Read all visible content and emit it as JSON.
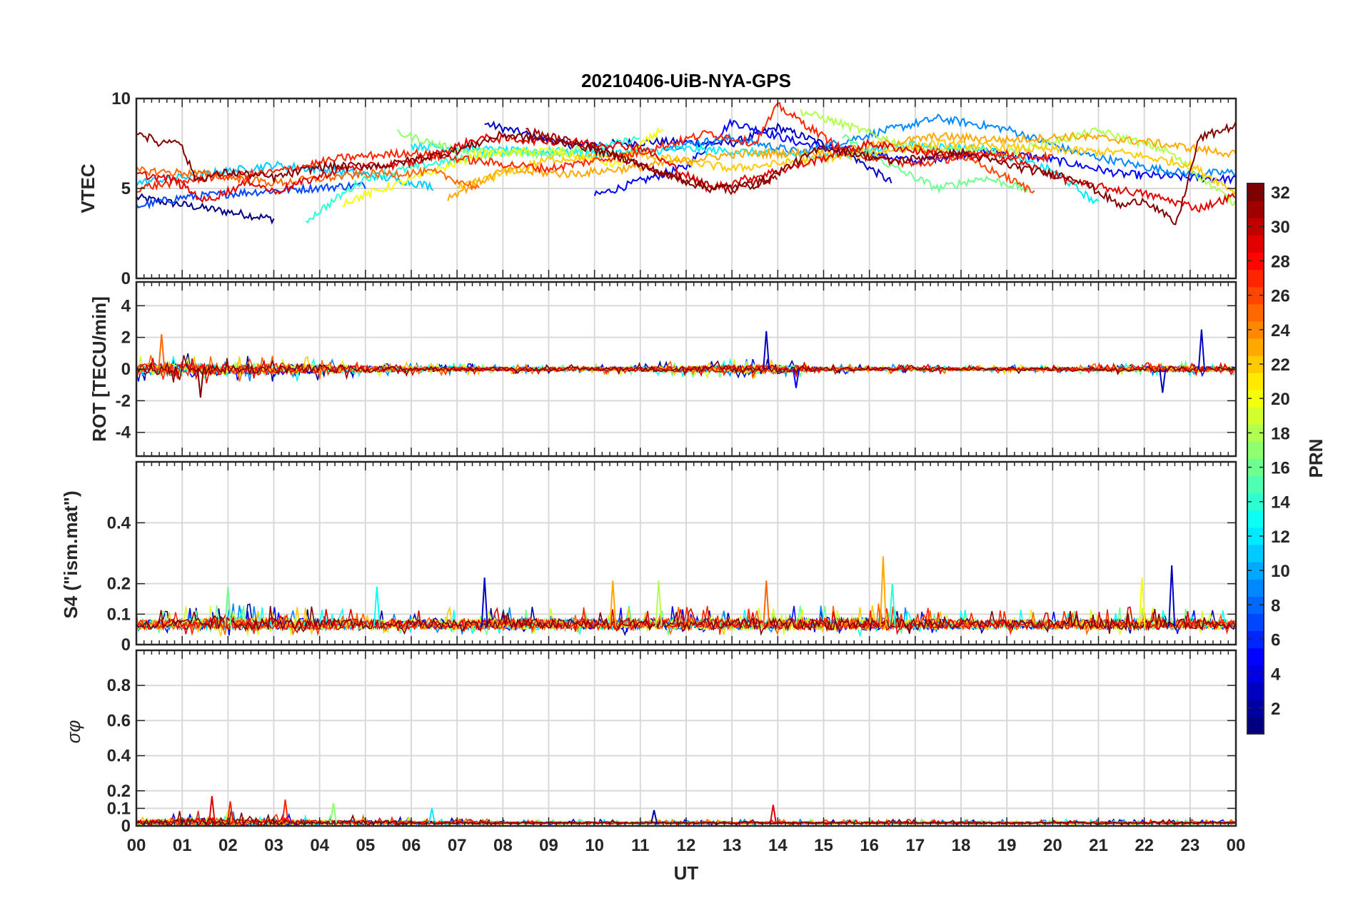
{
  "chart_data": {
    "type": "line",
    "title": "20210406-UiB-NYA-GPS",
    "xlabel": "UT",
    "x_tick_labels": [
      "00",
      "01",
      "02",
      "03",
      "04",
      "05",
      "06",
      "07",
      "08",
      "09",
      "10",
      "11",
      "12",
      "13",
      "14",
      "15",
      "16",
      "17",
      "18",
      "19",
      "20",
      "21",
      "22",
      "23",
      "00"
    ],
    "xlim": [
      0,
      24
    ],
    "grid": true,
    "colorbar": {
      "label": "PRN",
      "range": [
        1,
        32
      ],
      "tick_labels": [
        "2",
        "4",
        "6",
        "8",
        "10",
        "12",
        "14",
        "16",
        "18",
        "20",
        "22",
        "24",
        "26",
        "28",
        "30",
        "32"
      ],
      "colormap": "jet"
    },
    "panels": [
      {
        "name": "vtec",
        "ylabel": "VTEC",
        "ylim": [
          0,
          10
        ],
        "y_ticks": [
          0,
          5,
          10
        ],
        "y_tick_labels": [
          "0",
          "5",
          "10"
        ],
        "series": [
          {
            "prn": 1,
            "x": [
              0.0,
              1.5,
              3.0
            ],
            "y": [
              4.5,
              3.9,
              3.3
            ]
          },
          {
            "prn": 3,
            "x": [
              7.6,
              9.5,
              11.4,
              13.0,
              14.0,
              15.5,
              16.5
            ],
            "y": [
              8.6,
              7.4,
              7.6,
              7.5,
              8.4,
              7.0,
              5.3
            ]
          },
          {
            "prn": 5,
            "x": [
              10.0,
              12.0,
              13.0,
              14.5,
              15.5,
              17.0,
              18.5,
              20.0,
              21.5,
              23.0,
              24.0
            ],
            "y": [
              4.6,
              6.2,
              8.7,
              7.5,
              7.2,
              6.5,
              7.1,
              6.6,
              5.8,
              5.6,
              5.5
            ]
          },
          {
            "prn": 7,
            "x": [
              0.0,
              1.0,
              2.5,
              5.0
            ],
            "y": [
              4.0,
              4.5,
              4.8,
              5.2
            ]
          },
          {
            "prn": 9,
            "x": [
              11.5,
              13.0,
              14.5,
              16.0,
              17.5,
              19.0,
              20.5,
              22.0,
              23.0,
              24.0
            ],
            "y": [
              7.3,
              7.8,
              7.0,
              8.0,
              8.9,
              8.3,
              7.0,
              6.2,
              5.8,
              5.9
            ]
          },
          {
            "prn": 11,
            "x": [
              0.0,
              1.5,
              3.0,
              5.0,
              6.5
            ],
            "y": [
              5.3,
              5.8,
              6.3,
              5.8,
              5.1
            ]
          },
          {
            "prn": 12,
            "x": [
              6.0,
              8.0,
              10.0,
              12.0,
              13.5,
              15.0,
              17.0,
              18.5,
              20.0,
              21.0
            ],
            "y": [
              7.4,
              7.1,
              6.9,
              7.2,
              7.0,
              6.8,
              7.4,
              7.2,
              6.0,
              4.1
            ]
          },
          {
            "prn": 14,
            "x": [
              3.7,
              5.0,
              6.5,
              8.0,
              10.0,
              11.0
            ],
            "y": [
              3.2,
              5.6,
              6.4,
              7.0,
              7.2,
              7.8
            ]
          },
          {
            "prn": 16,
            "x": [
              15.4,
              16.5,
              17.5,
              18.5,
              19.5
            ],
            "y": [
              7.9,
              6.2,
              5.0,
              5.6,
              4.9
            ]
          },
          {
            "prn": 17,
            "x": [
              5.7,
              7.0,
              9.0,
              10.0
            ],
            "y": [
              8.1,
              7.1,
              6.9,
              7.4
            ]
          },
          {
            "prn": 18,
            "x": [
              14.5,
              15.5,
              17.0,
              19.0,
              21.0,
              22.5,
              24.0
            ],
            "y": [
              9.3,
              8.5,
              7.2,
              7.0,
              8.2,
              7.1,
              4.1
            ]
          },
          {
            "prn": 20,
            "x": [
              4.5,
              6.0,
              7.5,
              9.0,
              10.5,
              11.5
            ],
            "y": [
              4.2,
              5.5,
              6.9,
              7.1,
              6.3,
              8.4
            ]
          },
          {
            "prn": 22,
            "x": [
              7.0,
              9.0,
              11.0,
              13.0,
              15.5,
              17.5,
              19.5,
              21.5,
              23.0,
              24.0
            ],
            "y": [
              5.0,
              6.6,
              6.9,
              6.1,
              6.8,
              7.5,
              7.2,
              7.0,
              6.3,
              4.8
            ]
          },
          {
            "prn": 23,
            "x": [
              6.8,
              8.0,
              9.5,
              11.0,
              13.0,
              15.0,
              17.5,
              19.0,
              20.5,
              22.0,
              24.0
            ],
            "y": [
              4.5,
              6.0,
              5.8,
              6.2,
              6.9,
              7.0,
              7.9,
              7.7,
              7.9,
              7.6,
              6.9
            ]
          },
          {
            "prn": 25,
            "x": [
              0.0,
              1.5,
              3.0,
              5.0,
              6.5,
              7.5
            ],
            "y": [
              6.0,
              5.8,
              5.3,
              5.8,
              5.9,
              5.0
            ]
          },
          {
            "prn": 26,
            "x": [
              17.0,
              18.0,
              19.0,
              19.6
            ],
            "y": [
              7.2,
              6.8,
              5.6,
              4.8
            ]
          },
          {
            "prn": 27,
            "x": [
              0.0,
              1.5,
              3.0,
              4.5,
              6.0,
              7.5,
              9.0,
              11.0,
              12.5,
              13.5,
              14.0,
              15.5,
              17.0,
              18.5,
              20.0
            ],
            "y": [
              5.0,
              5.6,
              5.9,
              6.7,
              7.0,
              6.5,
              6.1,
              7.0,
              8.1,
              7.5,
              9.6,
              7.0,
              6.3,
              7.0,
              6.7
            ]
          },
          {
            "prn": 29,
            "x": [
              0.0,
              0.8,
              1.5,
              2.5,
              3.0,
              4.5,
              6.0,
              7.5,
              9.5,
              11.0,
              12.5,
              14.5,
              16.0,
              17.5,
              19.0,
              20.5,
              22.0,
              23.2,
              24.0
            ],
            "y": [
              5.8,
              5.5,
              4.3,
              5.4,
              4.8,
              6.1,
              6.4,
              7.8,
              7.6,
              7.3,
              5.0,
              6.3,
              7.5,
              6.9,
              6.7,
              5.3,
              4.7,
              3.9,
              4.6
            ]
          },
          {
            "prn": 31,
            "x": [
              8.5,
              10.0,
              11.5,
              13.0,
              14.0
            ],
            "y": [
              8.2,
              7.3,
              5.8,
              4.9,
              5.6
            ]
          },
          {
            "prn": 32,
            "x": [
              0.0,
              0.5,
              0.9,
              1.3,
              2.0,
              3.0,
              4.0,
              5.5,
              7.0,
              8.0,
              9.5,
              10.5,
              11.5,
              12.5,
              13.5,
              15.0,
              16.5,
              18.0,
              19.5,
              20.5,
              21.5,
              22.0,
              22.7,
              23.2,
              24.0
            ],
            "y": [
              8.2,
              7.5,
              7.8,
              5.5,
              5.9,
              5.6,
              6.2,
              6.3,
              7.1,
              8.0,
              7.5,
              6.8,
              5.8,
              5.0,
              5.2,
              7.3,
              6.5,
              7.0,
              6.0,
              5.6,
              4.0,
              4.4,
              3.0,
              7.8,
              8.5
            ]
          }
        ]
      },
      {
        "name": "rot",
        "ylabel": "ROT [TECU/min]",
        "ylim": [
          -5.5,
          5.5
        ],
        "y_ticks": [
          -4,
          -2,
          0,
          2,
          4
        ],
        "y_tick_labels": [
          "-4",
          "-2",
          "0",
          "2",
          "4"
        ],
        "baseline": 0,
        "noise_envelope": {
          "x": [
            0,
            1,
            2,
            3,
            4,
            5,
            6,
            8,
            10,
            12,
            13,
            14,
            15,
            18,
            20,
            22,
            23,
            24
          ],
          "amplitude": [
            0.9,
            1.2,
            0.9,
            1.0,
            0.8,
            0.6,
            0.45,
            0.35,
            0.35,
            0.55,
            0.7,
            0.8,
            0.35,
            0.3,
            0.3,
            0.45,
            0.55,
            0.35
          ]
        },
        "spikes": [
          {
            "x": 0.55,
            "y": 2.2,
            "prn": 25
          },
          {
            "x": 1.4,
            "y": -1.8,
            "prn": 32
          },
          {
            "x": 13.75,
            "y": 2.4,
            "prn": 3
          },
          {
            "x": 23.25,
            "y": 2.5,
            "prn": 3
          },
          {
            "x": 14.4,
            "y": -1.2,
            "prn": 5
          },
          {
            "x": 22.4,
            "y": -1.5,
            "prn": 3
          }
        ]
      },
      {
        "name": "s4",
        "ylabel": "S4 (\"ism.mat\")",
        "ylim": [
          0,
          0.6
        ],
        "y_ticks": [
          0,
          0.1,
          0.2,
          0.4
        ],
        "y_tick_labels": [
          "0",
          "0.1",
          "0.2",
          "0.4"
        ],
        "baseline": 0.06,
        "noise_envelope": {
          "x": [
            0,
            2,
            4,
            6,
            8,
            10,
            12,
            14,
            16,
            18,
            20,
            22,
            24
          ],
          "amplitude": [
            0.05,
            0.07,
            0.06,
            0.05,
            0.06,
            0.06,
            0.06,
            0.06,
            0.07,
            0.05,
            0.05,
            0.06,
            0.05
          ]
        },
        "spikes": [
          {
            "x": 7.6,
            "y": 0.22,
            "prn": 3
          },
          {
            "x": 10.4,
            "y": 0.21,
            "prn": 23
          },
          {
            "x": 11.4,
            "y": 0.21,
            "prn": 18
          },
          {
            "x": 13.75,
            "y": 0.21,
            "prn": 25
          },
          {
            "x": 16.3,
            "y": 0.29,
            "prn": 23
          },
          {
            "x": 16.5,
            "y": 0.2,
            "prn": 14
          },
          {
            "x": 22.6,
            "y": 0.26,
            "prn": 3
          },
          {
            "x": 21.95,
            "y": 0.22,
            "prn": 20
          },
          {
            "x": 2.0,
            "y": 0.19,
            "prn": 16
          },
          {
            "x": 5.25,
            "y": 0.19,
            "prn": 13
          }
        ]
      },
      {
        "name": "sigma_phi",
        "ylabel": "σφ",
        "ylim": [
          0,
          1
        ],
        "y_ticks": [
          0,
          0.1,
          0.2,
          0.4,
          0.6,
          0.8
        ],
        "y_tick_labels": [
          "0",
          "0.1",
          "0.2",
          "0.4",
          "0.6",
          "0.8"
        ],
        "baseline": 0.015,
        "noise_envelope": {
          "x": [
            0,
            1,
            2,
            3,
            4,
            5,
            6,
            8,
            10,
            12,
            14,
            16,
            18,
            20,
            22,
            24
          ],
          "amplitude": [
            0.04,
            0.07,
            0.07,
            0.05,
            0.04,
            0.04,
            0.03,
            0.02,
            0.02,
            0.02,
            0.02,
            0.02,
            0.02,
            0.02,
            0.02,
            0.02
          ]
        },
        "spikes": [
          {
            "x": 1.65,
            "y": 0.17,
            "prn": 29
          },
          {
            "x": 2.05,
            "y": 0.14,
            "prn": 27
          },
          {
            "x": 3.25,
            "y": 0.15,
            "prn": 27
          },
          {
            "x": 4.3,
            "y": 0.13,
            "prn": 17
          },
          {
            "x": 13.9,
            "y": 0.12,
            "prn": 29
          },
          {
            "x": 6.45,
            "y": 0.1,
            "prn": 12
          },
          {
            "x": 11.3,
            "y": 0.09,
            "prn": 2
          }
        ]
      }
    ]
  }
}
